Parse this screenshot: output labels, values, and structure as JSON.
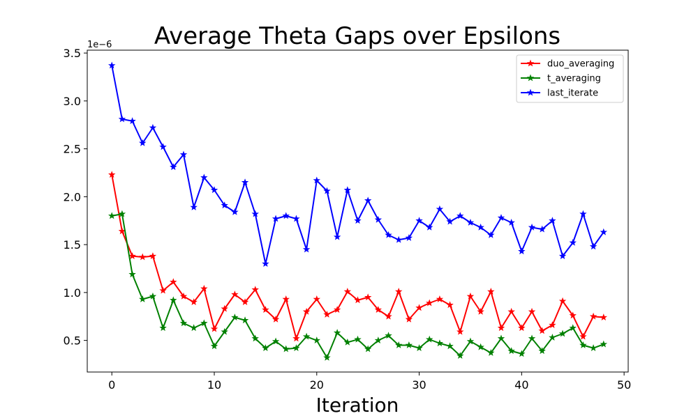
{
  "chart_data": {
    "type": "line",
    "title": "Average Theta Gaps over Epsilons",
    "xlabel": "Iteration",
    "ylabel": "",
    "y_offset_label": "1e−6",
    "xlim": [
      -2.4,
      50.4
    ],
    "ylim": [
      0.17,
      3.53
    ],
    "xticks": [
      0,
      10,
      20,
      30,
      40,
      50
    ],
    "xtick_labels": [
      "0",
      "10",
      "20",
      "30",
      "40",
      "50"
    ],
    "yticks": [
      0.5,
      1.0,
      1.5,
      2.0,
      2.5,
      3.0,
      3.5
    ],
    "ytick_labels": [
      "0.5",
      "1.0",
      "1.5",
      "2.0",
      "2.5",
      "3.0",
      "3.5"
    ],
    "grid": false,
    "legend_position": "top-right",
    "marker": "star",
    "series": [
      {
        "name": "duo_averaging",
        "color": "#ff0000",
        "x": [
          0,
          1,
          2,
          3,
          4,
          5,
          6,
          7,
          8,
          9,
          10,
          11,
          12,
          13,
          14,
          15,
          16,
          17,
          18,
          19,
          20,
          21,
          22,
          23,
          24,
          25,
          26,
          27,
          28,
          29,
          30,
          31,
          32,
          33,
          34,
          35,
          36,
          37,
          38,
          39,
          40,
          41,
          42,
          43,
          44,
          45,
          46,
          47,
          48
        ],
        "values": [
          2.23,
          1.64,
          1.38,
          1.37,
          1.38,
          1.02,
          1.11,
          0.96,
          0.9,
          1.04,
          0.62,
          0.83,
          0.98,
          0.9,
          1.03,
          0.82,
          0.72,
          0.93,
          0.52,
          0.8,
          0.93,
          0.77,
          0.82,
          1.01,
          0.92,
          0.95,
          0.82,
          0.75,
          1.01,
          0.72,
          0.84,
          0.89,
          0.93,
          0.87,
          0.59,
          0.96,
          0.8,
          1.01,
          0.63,
          0.8,
          0.63,
          0.8,
          0.6,
          0.66,
          0.91,
          0.76,
          0.54,
          0.75,
          0.74
        ]
      },
      {
        "name": "t_averaging",
        "color": "#008000",
        "x": [
          0,
          1,
          2,
          3,
          4,
          5,
          6,
          7,
          8,
          9,
          10,
          11,
          12,
          13,
          14,
          15,
          16,
          17,
          18,
          19,
          20,
          21,
          22,
          23,
          24,
          25,
          26,
          27,
          28,
          29,
          30,
          31,
          32,
          33,
          34,
          35,
          36,
          37,
          38,
          39,
          40,
          41,
          42,
          43,
          44,
          45,
          46,
          47,
          48
        ],
        "values": [
          1.8,
          1.82,
          1.19,
          0.93,
          0.96,
          0.63,
          0.92,
          0.68,
          0.63,
          0.68,
          0.44,
          0.59,
          0.74,
          0.71,
          0.52,
          0.42,
          0.49,
          0.41,
          0.42,
          0.54,
          0.5,
          0.32,
          0.58,
          0.48,
          0.51,
          0.41,
          0.5,
          0.55,
          0.45,
          0.45,
          0.42,
          0.51,
          0.47,
          0.44,
          0.34,
          0.49,
          0.43,
          0.37,
          0.52,
          0.39,
          0.36,
          0.52,
          0.39,
          0.53,
          0.57,
          0.63,
          0.45,
          0.42,
          0.46
        ]
      },
      {
        "name": "last_iterate",
        "color": "#0000ff",
        "x": [
          0,
          1,
          2,
          3,
          4,
          5,
          6,
          7,
          8,
          9,
          10,
          11,
          12,
          13,
          14,
          15,
          16,
          17,
          18,
          19,
          20,
          21,
          22,
          23,
          24,
          25,
          26,
          27,
          28,
          29,
          30,
          31,
          32,
          33,
          34,
          35,
          36,
          37,
          38,
          39,
          40,
          41,
          42,
          43,
          44,
          45,
          46,
          47,
          48
        ],
        "values": [
          3.37,
          2.81,
          2.79,
          2.56,
          2.72,
          2.52,
          2.31,
          2.44,
          1.89,
          2.2,
          2.07,
          1.91,
          1.84,
          2.15,
          1.82,
          1.3,
          1.77,
          1.8,
          1.77,
          1.45,
          2.17,
          2.06,
          1.58,
          2.07,
          1.75,
          1.96,
          1.76,
          1.6,
          1.55,
          1.57,
          1.75,
          1.68,
          1.87,
          1.74,
          1.8,
          1.73,
          1.68,
          1.6,
          1.78,
          1.73,
          1.43,
          1.68,
          1.66,
          1.75,
          1.38,
          1.52,
          1.82,
          1.48,
          1.63
        ]
      }
    ]
  }
}
